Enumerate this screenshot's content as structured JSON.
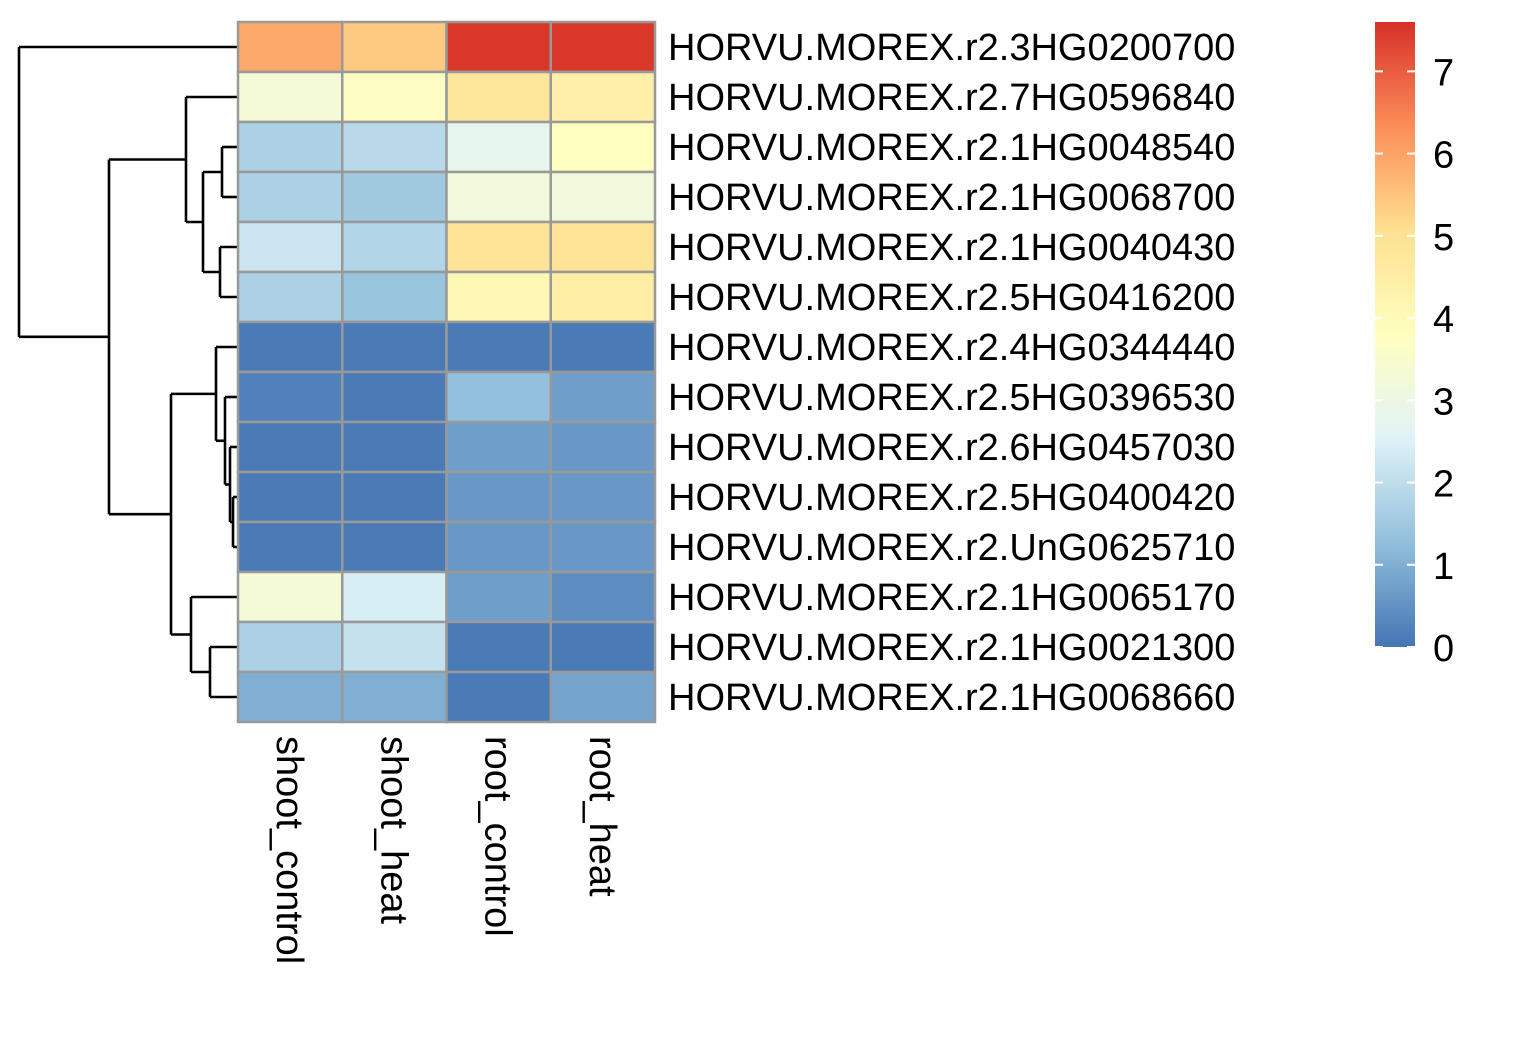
{
  "chart_data": {
    "type": "heatmap",
    "title": "",
    "xlabel": "",
    "ylabel": "",
    "columns": [
      "shoot_control",
      "shoot_heat",
      "root_control",
      "root_heat"
    ],
    "rows": [
      "HORVU.MOREX.r2.3HG0200700",
      "HORVU.MOREX.r2.7HG0596840",
      "HORVU.MOREX.r2.1HG0048540",
      "HORVU.MOREX.r2.1HG0068700",
      "HORVU.MOREX.r2.1HG0040430",
      "HORVU.MOREX.r2.5HG0416200",
      "HORVU.MOREX.r2.4HG0344440",
      "HORVU.MOREX.r2.5HG0396530",
      "HORVU.MOREX.r2.6HG0457030",
      "HORVU.MOREX.r2.5HG0400420",
      "HORVU.MOREX.r2.UnG0625710",
      "HORVU.MOREX.r2.1HG0065170",
      "HORVU.MOREX.r2.1HG0021300",
      "HORVU.MOREX.r2.1HG0068660"
    ],
    "values": [
      [
        5.9,
        5.4,
        7.5,
        7.5
      ],
      [
        3.3,
        3.7,
        4.8,
        4.4
      ],
      [
        1.7,
        1.9,
        2.8,
        3.8
      ],
      [
        1.7,
        1.5,
        3.2,
        3.2
      ],
      [
        2.2,
        1.8,
        4.9,
        4.9
      ],
      [
        1.7,
        1.4,
        4.1,
        4.5
      ],
      [
        0.1,
        0.1,
        0.1,
        0.1
      ],
      [
        0.2,
        0.1,
        1.3,
        0.7
      ],
      [
        0.1,
        0.1,
        0.7,
        0.6
      ],
      [
        0.1,
        0.1,
        0.6,
        0.6
      ],
      [
        0.1,
        0.1,
        0.6,
        0.6
      ],
      [
        3.3,
        2.4,
        0.7,
        0.4
      ],
      [
        1.7,
        2.1,
        0.1,
        0.1
      ],
      [
        1.0,
        1.0,
        0.1,
        0.8
      ]
    ],
    "legend": {
      "position": "right",
      "range": [
        0,
        7.6
      ],
      "ticks": [
        0,
        1,
        2,
        3,
        4,
        5,
        6,
        7
      ],
      "colors": [
        "#4575b4",
        "#91bfdb",
        "#e0f3f8",
        "#ffffbf",
        "#fee090",
        "#fc8d59",
        "#d73027"
      ]
    },
    "cell_border_color": "#999999",
    "row_dendrogram": true,
    "row_dendrogram_position": "left"
  }
}
